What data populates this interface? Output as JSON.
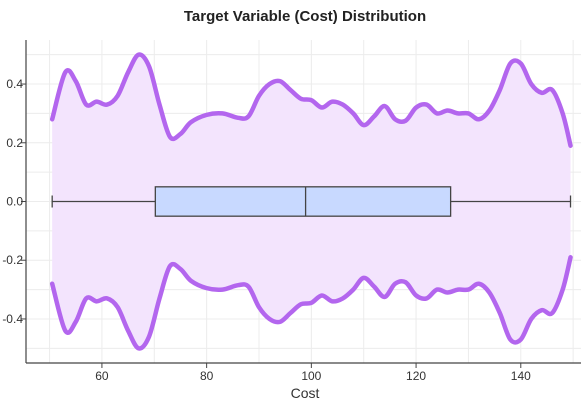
{
  "chart_data": {
    "type": "violin",
    "title": "Target Variable (Cost) Distribution",
    "xlabel": "Cost",
    "ylabel": "",
    "xlim": [
      45.5,
      151.5
    ],
    "ylim": [
      -0.55,
      0.55
    ],
    "xticks": [
      60,
      80,
      100,
      120,
      140
    ],
    "yticks": [
      0.4,
      0.2,
      0.0,
      -0.2,
      -0.4
    ],
    "ytick_labels": [
      "0.4",
      "0.2",
      "0.0",
      "-0.2",
      "-0.4"
    ],
    "grid": true,
    "violin": {
      "x_min": 50.5,
      "x_max": 149.5,
      "density_profile": [
        [
          50.5,
          0.28
        ],
        [
          53,
          0.44
        ],
        [
          55,
          0.41
        ],
        [
          57,
          0.33
        ],
        [
          59,
          0.34
        ],
        [
          61,
          0.33
        ],
        [
          63,
          0.36
        ],
        [
          65,
          0.44
        ],
        [
          67,
          0.5
        ],
        [
          69,
          0.46
        ],
        [
          71,
          0.33
        ],
        [
          73,
          0.22
        ],
        [
          75,
          0.23
        ],
        [
          77,
          0.27
        ],
        [
          80,
          0.295
        ],
        [
          83,
          0.3
        ],
        [
          86,
          0.285
        ],
        [
          88,
          0.29
        ],
        [
          90,
          0.36
        ],
        [
          92,
          0.4
        ],
        [
          94,
          0.41
        ],
        [
          96,
          0.38
        ],
        [
          98,
          0.35
        ],
        [
          100,
          0.345
        ],
        [
          102,
          0.32
        ],
        [
          104,
          0.34
        ],
        [
          106,
          0.33
        ],
        [
          108,
          0.3
        ],
        [
          110,
          0.26
        ],
        [
          112,
          0.29
        ],
        [
          114,
          0.325
        ],
        [
          116,
          0.28
        ],
        [
          118,
          0.275
        ],
        [
          120,
          0.32
        ],
        [
          122,
          0.33
        ],
        [
          124,
          0.3
        ],
        [
          126,
          0.31
        ],
        [
          128,
          0.3
        ],
        [
          130,
          0.3
        ],
        [
          132,
          0.28
        ],
        [
          134,
          0.31
        ],
        [
          136,
          0.38
        ],
        [
          138,
          0.47
        ],
        [
          140,
          0.47
        ],
        [
          142,
          0.4
        ],
        [
          144,
          0.37
        ],
        [
          146,
          0.38
        ],
        [
          148,
          0.3
        ],
        [
          149.5,
          0.19
        ]
      ],
      "line_color": "#b366ee",
      "fill_color": "#f3e4fd"
    },
    "boxplot": {
      "whisker_low": 50.5,
      "q1": 70.2,
      "median": 98.9,
      "q3": 126.6,
      "whisker_high": 149.5,
      "half_height": 0.05,
      "fill_color": "#c8d9ff",
      "line_color": "#444444"
    }
  }
}
